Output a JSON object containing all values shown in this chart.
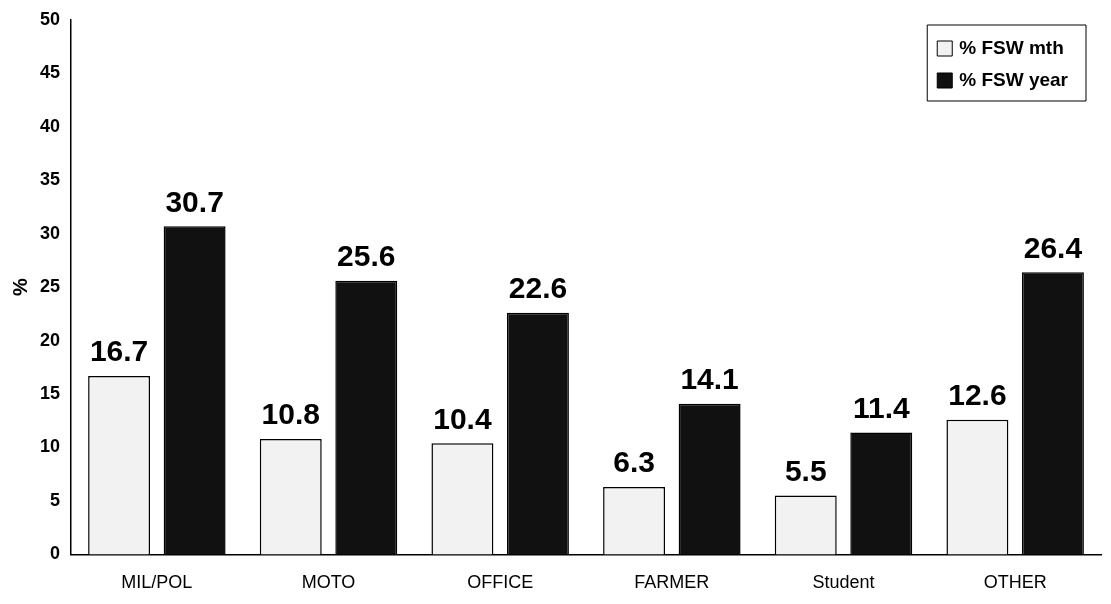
{
  "chart_data": {
    "type": "bar",
    "ylabel": "%",
    "categories": [
      "MIL/POL",
      "MOTO",
      "OFFICE",
      "FARMER",
      "Student",
      "OTHER"
    ],
    "series": [
      {
        "name": "% FSW mth",
        "color": "#f2f2f2",
        "values": [
          16.7,
          10.8,
          10.4,
          6.3,
          5.5,
          12.6
        ]
      },
      {
        "name": "% FSW year",
        "color": "#111111",
        "values": [
          30.7,
          25.6,
          22.6,
          14.1,
          11.4,
          26.4
        ]
      }
    ],
    "ylim": [
      0,
      50
    ],
    "yticks": [
      0,
      5,
      10,
      15,
      20,
      25,
      30,
      35,
      40,
      45,
      50
    ],
    "grid": false,
    "legend": "top right",
    "data_labels": true
  }
}
